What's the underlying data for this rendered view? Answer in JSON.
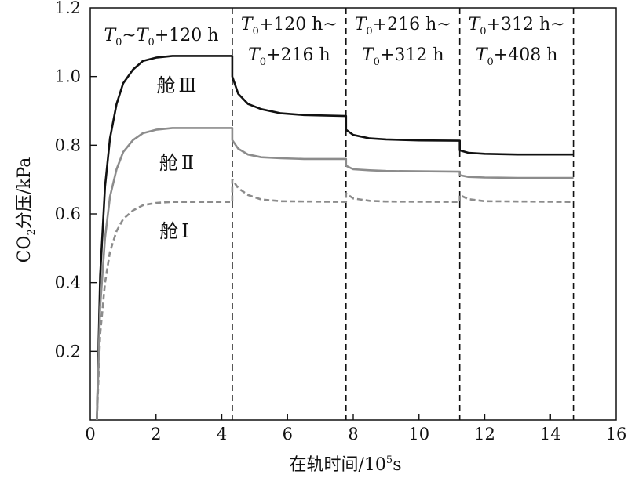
{
  "chart_data": {
    "type": "line",
    "xlabel_main": "在轨时间/10",
    "xlabel_sup": "5",
    "xlabel_tail": "s",
    "ylabel_pre": "CO",
    "ylabel_sub": "2",
    "ylabel_post": "分压/kPa",
    "xlim": [
      0,
      16
    ],
    "ylim": [
      0,
      1.2
    ],
    "x_ticks": [
      0,
      2,
      4,
      6,
      8,
      10,
      12,
      14,
      16
    ],
    "y_ticks": [
      0.2,
      0.4,
      0.6,
      0.8,
      1.0,
      1.2
    ],
    "y_tick_labels": [
      "0.2",
      "0.4",
      "0.6",
      "0.8",
      "1.0",
      "1.2"
    ],
    "grid": false,
    "boundaries": [
      4.32,
      7.78,
      11.24,
      14.7
    ],
    "phase_labels": [
      {
        "line1": [
          {
            "t": "T",
            "i": true
          },
          {
            "t": "0",
            "sub": true
          },
          {
            "t": "~"
          },
          {
            "t": "T",
            "i": true
          },
          {
            "t": "0",
            "sub": true
          },
          {
            "t": "+120 h"
          }
        ],
        "line2": []
      },
      {
        "line1": [
          {
            "t": "T",
            "i": true
          },
          {
            "t": "0",
            "sub": true
          },
          {
            "t": "+120 h~"
          }
        ],
        "line2": [
          {
            "t": "T",
            "i": true
          },
          {
            "t": "0",
            "sub": true
          },
          {
            "t": "+216 h"
          }
        ]
      },
      {
        "line1": [
          {
            "t": "T",
            "i": true
          },
          {
            "t": "0",
            "sub": true
          },
          {
            "t": "+216 h~"
          }
        ],
        "line2": [
          {
            "t": "T",
            "i": true
          },
          {
            "t": "0",
            "sub": true
          },
          {
            "t": "+312 h"
          }
        ]
      },
      {
        "line1": [
          {
            "t": "T",
            "i": true
          },
          {
            "t": "0",
            "sub": true
          },
          {
            "t": "+312 h~"
          }
        ],
        "line2": [
          {
            "t": "T",
            "i": true
          },
          {
            "t": "0",
            "sub": true
          },
          {
            "t": "+408 h"
          }
        ]
      }
    ],
    "series": [
      {
        "name": "舱Ⅲ",
        "color": "#111111",
        "dashed": false,
        "x": [
          0.2,
          0.3,
          0.45,
          0.6,
          0.8,
          1.0,
          1.3,
          1.6,
          2.0,
          2.5,
          3.0,
          4.32,
          4.32,
          4.5,
          4.8,
          5.2,
          5.8,
          6.5,
          7.78,
          7.78,
          8.0,
          8.5,
          9.0,
          10.0,
          11.24,
          11.24,
          11.5,
          12.0,
          13.0,
          14.7
        ],
        "y": [
          0.0,
          0.42,
          0.68,
          0.82,
          0.92,
          0.98,
          1.02,
          1.045,
          1.055,
          1.06,
          1.06,
          1.06,
          1.0,
          0.95,
          0.92,
          0.905,
          0.893,
          0.888,
          0.885,
          0.845,
          0.83,
          0.82,
          0.817,
          0.814,
          0.813,
          0.785,
          0.778,
          0.775,
          0.773,
          0.773
        ]
      },
      {
        "name": "舱Ⅱ",
        "color": "#8c8c8c",
        "dashed": false,
        "x": [
          0.2,
          0.3,
          0.45,
          0.6,
          0.8,
          1.0,
          1.3,
          1.6,
          2.0,
          2.5,
          3.0,
          4.32,
          4.32,
          4.5,
          4.8,
          5.2,
          5.8,
          6.5,
          7.78,
          7.78,
          8.0,
          8.5,
          9.0,
          10.0,
          11.24,
          11.24,
          11.5,
          12.0,
          13.0,
          14.7
        ],
        "y": [
          0.0,
          0.33,
          0.53,
          0.65,
          0.73,
          0.78,
          0.815,
          0.835,
          0.845,
          0.85,
          0.85,
          0.85,
          0.815,
          0.79,
          0.773,
          0.765,
          0.762,
          0.76,
          0.76,
          0.74,
          0.73,
          0.727,
          0.725,
          0.724,
          0.723,
          0.713,
          0.708,
          0.706,
          0.705,
          0.705
        ]
      },
      {
        "name": "舱Ⅰ",
        "color": "#8c8c8c",
        "dashed": true,
        "x": [
          0.2,
          0.3,
          0.45,
          0.6,
          0.8,
          1.0,
          1.3,
          1.6,
          2.0,
          2.5,
          3.0,
          4.32,
          4.32,
          4.5,
          4.8,
          5.2,
          5.8,
          7.78,
          7.78,
          8.0,
          8.5,
          9.0,
          11.24,
          11.24,
          11.5,
          12.0,
          14.7
        ],
        "y": [
          0.0,
          0.25,
          0.4,
          0.49,
          0.55,
          0.585,
          0.61,
          0.625,
          0.632,
          0.635,
          0.635,
          0.635,
          0.7,
          0.675,
          0.655,
          0.642,
          0.637,
          0.635,
          0.66,
          0.645,
          0.638,
          0.636,
          0.635,
          0.655,
          0.643,
          0.637,
          0.635
        ]
      }
    ],
    "series_labels": [
      {
        "cn": "舱",
        "roman": "Ⅲ"
      },
      {
        "cn": "舱",
        "roman": "Ⅱ"
      },
      {
        "cn": "舱",
        "roman": "Ⅰ"
      }
    ]
  }
}
